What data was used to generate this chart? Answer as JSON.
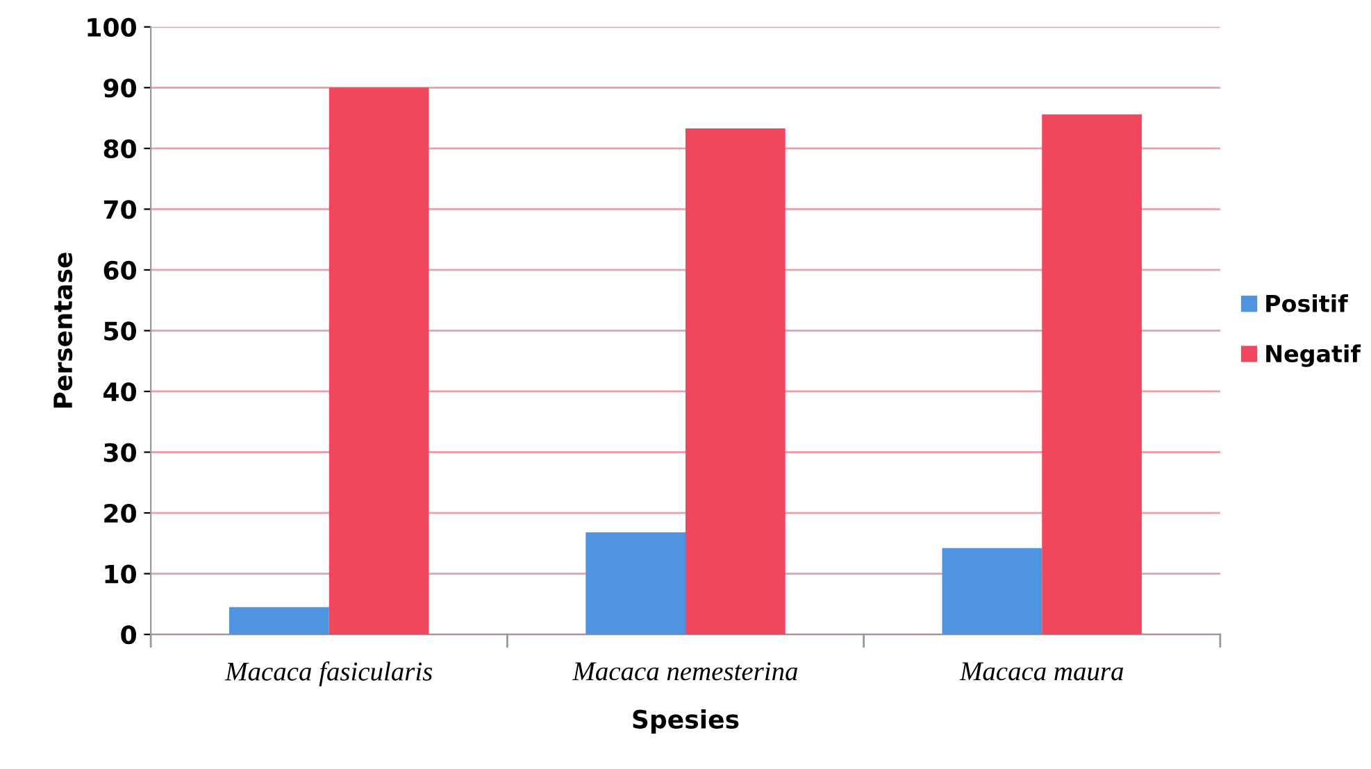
{
  "chart_data": {
    "type": "bar",
    "xlabel": "Spesies",
    "ylabel": "Persentase",
    "categories": [
      "Macaca fasicularis",
      "Macaca nemesterina",
      "Macaca maura"
    ],
    "series": [
      {
        "name": "Positif",
        "color": "#4f94e0",
        "values": [
          4.5,
          16.8,
          14.2
        ]
      },
      {
        "name": "Negatif",
        "color": "#f0475f",
        "values": [
          90,
          83.3,
          85.6
        ]
      }
    ],
    "ylim": [
      0,
      100
    ],
    "yticks": [
      0,
      10,
      20,
      30,
      40,
      50,
      60,
      70,
      80,
      90,
      100
    ],
    "grid": "y",
    "legend": "right"
  }
}
